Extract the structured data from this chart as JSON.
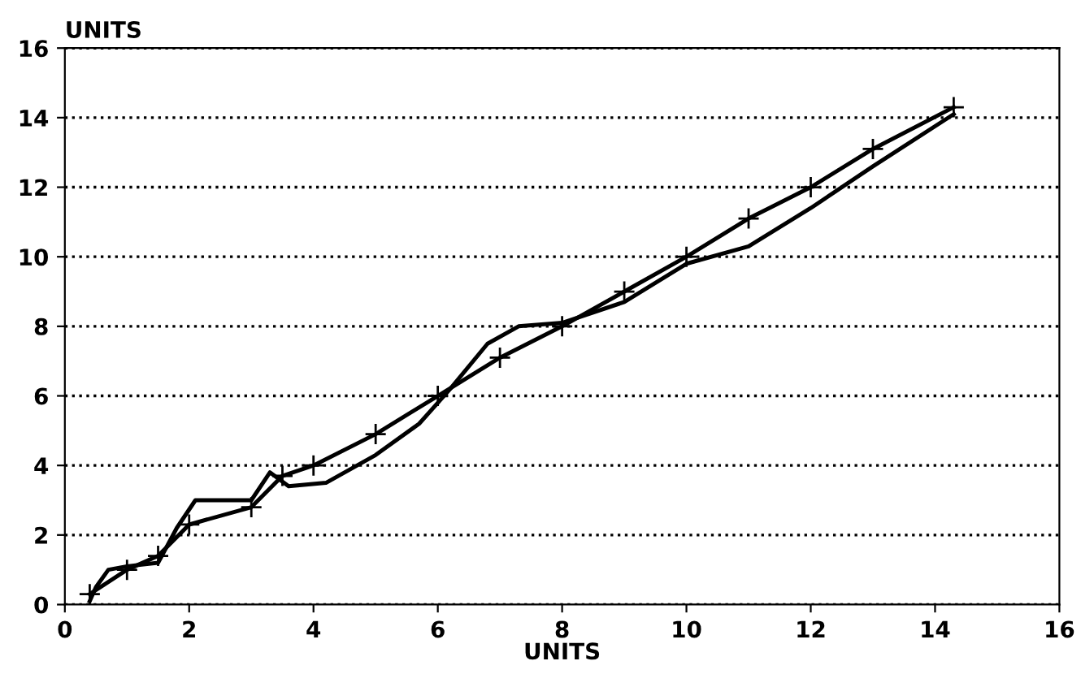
{
  "chart_data": {
    "type": "line",
    "xlabel": "UNITS",
    "ylabel": "UNITS",
    "xlim": [
      0,
      16
    ],
    "ylim": [
      0,
      16
    ],
    "xticks": [
      0,
      2,
      4,
      6,
      8,
      10,
      12,
      14,
      16
    ],
    "yticks": [
      0,
      2,
      4,
      6,
      8,
      10,
      12,
      14,
      16
    ],
    "grid": "y",
    "legend": false,
    "series": [
      {
        "color": "#000000",
        "marker": "none",
        "line_style": "solid",
        "x": [
          0.4,
          0.5,
          0.7,
          1.0,
          1.5,
          1.8,
          2.1,
          2.5,
          3.0,
          3.3,
          3.6,
          4.2,
          5.0,
          5.7,
          6.2,
          6.8,
          7.3,
          8.0,
          9.0,
          10.0,
          11.0,
          12.0,
          13.0,
          14.3
        ],
        "values": [
          0.1,
          0.5,
          1.0,
          1.1,
          1.2,
          2.2,
          3.0,
          3.0,
          3.0,
          3.8,
          3.4,
          3.5,
          4.3,
          5.2,
          6.2,
          7.5,
          8.0,
          8.1,
          8.7,
          9.8,
          10.3,
          11.4,
          12.6,
          14.1
        ]
      },
      {
        "color": "#000000",
        "marker": "cross",
        "line_style": "solid",
        "x": [
          0.4,
          1.0,
          1.5,
          2.0,
          3.0,
          3.5,
          4.0,
          5.0,
          6.0,
          7.0,
          8.0,
          9.0,
          10.0,
          11.0,
          12.0,
          13.0,
          14.3
        ],
        "values": [
          0.3,
          1.0,
          1.4,
          2.3,
          2.8,
          3.7,
          4.0,
          4.9,
          6.0,
          7.1,
          8.0,
          9.0,
          10.0,
          11.1,
          12.0,
          13.1,
          14.3
        ]
      }
    ]
  }
}
